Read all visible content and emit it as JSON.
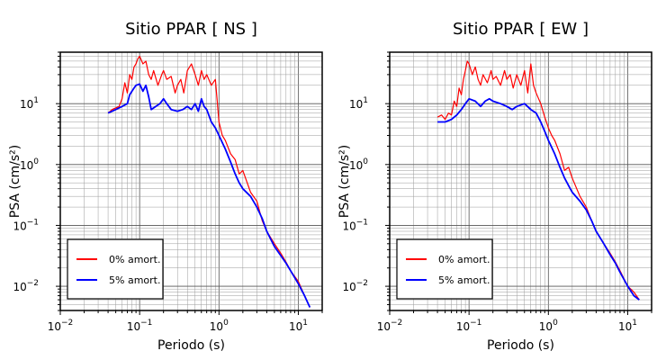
{
  "chart_data": [
    {
      "type": "line",
      "title": "Sitio PPAR [ NS ]",
      "xlabel": "Periodo (s)",
      "ylabel": "PSA (cm/s²)",
      "xscale": "log",
      "yscale": "log",
      "xlim": [
        0.01,
        20
      ],
      "ylim": [
        0.004,
        70
      ],
      "x_ticks": [
        {
          "base": "10",
          "exp": "−2"
        },
        {
          "base": "10",
          "exp": "−1"
        },
        {
          "base": "10",
          "exp": "0"
        },
        {
          "base": "10",
          "exp": "1"
        }
      ],
      "y_ticks": [
        {
          "base": "10",
          "exp": "−2"
        },
        {
          "base": "10",
          "exp": "−1"
        },
        {
          "base": "10",
          "exp": "0"
        },
        {
          "base": "10",
          "exp": "1"
        }
      ],
      "grid": true,
      "legend_position": "bottom-left",
      "series": [
        {
          "name": "0% amort.",
          "color": "#ff0000",
          "points": [
            [
              0.04,
              7
            ],
            [
              0.045,
              8
            ],
            [
              0.05,
              8.5
            ],
            [
              0.055,
              9
            ],
            [
              0.06,
              12
            ],
            [
              0.065,
              22
            ],
            [
              0.07,
              15
            ],
            [
              0.075,
              30
            ],
            [
              0.08,
              25
            ],
            [
              0.085,
              40
            ],
            [
              0.09,
              45
            ],
            [
              0.095,
              55
            ],
            [
              0.1,
              60
            ],
            [
              0.11,
              45
            ],
            [
              0.12,
              50
            ],
            [
              0.13,
              30
            ],
            [
              0.14,
              25
            ],
            [
              0.15,
              35
            ],
            [
              0.17,
              20
            ],
            [
              0.19,
              30
            ],
            [
              0.2,
              35
            ],
            [
              0.22,
              25
            ],
            [
              0.25,
              28
            ],
            [
              0.28,
              15
            ],
            [
              0.3,
              20
            ],
            [
              0.33,
              25
            ],
            [
              0.36,
              15
            ],
            [
              0.4,
              35
            ],
            [
              0.45,
              45
            ],
            [
              0.5,
              30
            ],
            [
              0.55,
              20
            ],
            [
              0.6,
              35
            ],
            [
              0.65,
              25
            ],
            [
              0.7,
              30
            ],
            [
              0.8,
              20
            ],
            [
              0.9,
              25
            ],
            [
              1.0,
              5
            ],
            [
              1.1,
              3
            ],
            [
              1.2,
              2.5
            ],
            [
              1.4,
              1.5
            ],
            [
              1.6,
              1.2
            ],
            [
              1.8,
              0.7
            ],
            [
              2.0,
              0.8
            ],
            [
              2.5,
              0.35
            ],
            [
              3.0,
              0.25
            ],
            [
              3.5,
              0.12
            ],
            [
              4.0,
              0.08
            ],
            [
              5.0,
              0.05
            ],
            [
              6.0,
              0.035
            ],
            [
              7.0,
              0.025
            ],
            [
              8.0,
              0.018
            ],
            [
              10.0,
              0.012
            ],
            [
              12.0,
              0.007
            ],
            [
              14.0,
              0.0045
            ]
          ]
        },
        {
          "name": "5% amort.",
          "color": "#0000ff",
          "points": [
            [
              0.04,
              7
            ],
            [
              0.045,
              7.5
            ],
            [
              0.05,
              8
            ],
            [
              0.06,
              9
            ],
            [
              0.07,
              10
            ],
            [
              0.075,
              14
            ],
            [
              0.08,
              16
            ],
            [
              0.085,
              18
            ],
            [
              0.09,
              20
            ],
            [
              0.1,
              21
            ],
            [
              0.11,
              16
            ],
            [
              0.12,
              20
            ],
            [
              0.13,
              13
            ],
            [
              0.14,
              8
            ],
            [
              0.16,
              9
            ],
            [
              0.18,
              10
            ],
            [
              0.2,
              12
            ],
            [
              0.22,
              10
            ],
            [
              0.25,
              8
            ],
            [
              0.3,
              7.5
            ],
            [
              0.35,
              8
            ],
            [
              0.4,
              9
            ],
            [
              0.45,
              8
            ],
            [
              0.5,
              10
            ],
            [
              0.55,
              7.5
            ],
            [
              0.6,
              12
            ],
            [
              0.65,
              9
            ],
            [
              0.7,
              8
            ],
            [
              0.8,
              5
            ],
            [
              0.9,
              4
            ],
            [
              1.0,
              3
            ],
            [
              1.2,
              1.8
            ],
            [
              1.4,
              1.1
            ],
            [
              1.6,
              0.7
            ],
            [
              1.8,
              0.5
            ],
            [
              2.0,
              0.4
            ],
            [
              2.5,
              0.3
            ],
            [
              3.0,
              0.2
            ],
            [
              3.5,
              0.13
            ],
            [
              4.0,
              0.08
            ],
            [
              5.0,
              0.045
            ],
            [
              6.0,
              0.032
            ],
            [
              7.0,
              0.024
            ],
            [
              8.0,
              0.018
            ],
            [
              10.0,
              0.011
            ],
            [
              12.0,
              0.007
            ],
            [
              14.0,
              0.0045
            ]
          ]
        }
      ]
    },
    {
      "type": "line",
      "title": "Sitio PPAR [ EW ]",
      "xlabel": "Periodo (s)",
      "ylabel": "PSA (cm/s²)",
      "xscale": "log",
      "yscale": "log",
      "xlim": [
        0.01,
        20
      ],
      "ylim": [
        0.004,
        70
      ],
      "x_ticks": [
        {
          "base": "10",
          "exp": "−2"
        },
        {
          "base": "10",
          "exp": "−1"
        },
        {
          "base": "10",
          "exp": "0"
        },
        {
          "base": "10",
          "exp": "1"
        }
      ],
      "y_ticks": [
        {
          "base": "10",
          "exp": "−2"
        },
        {
          "base": "10",
          "exp": "−1"
        },
        {
          "base": "10",
          "exp": "0"
        },
        {
          "base": "10",
          "exp": "1"
        }
      ],
      "grid": true,
      "legend_position": "bottom-left",
      "series": [
        {
          "name": "0% amort.",
          "color": "#ff0000",
          "points": [
            [
              0.04,
              6
            ],
            [
              0.045,
              6.5
            ],
            [
              0.05,
              5.5
            ],
            [
              0.055,
              7
            ],
            [
              0.06,
              6.5
            ],
            [
              0.065,
              11
            ],
            [
              0.07,
              9
            ],
            [
              0.075,
              18
            ],
            [
              0.08,
              14
            ],
            [
              0.085,
              25
            ],
            [
              0.09,
              35
            ],
            [
              0.095,
              50
            ],
            [
              0.1,
              45
            ],
            [
              0.11,
              30
            ],
            [
              0.12,
              40
            ],
            [
              0.13,
              25
            ],
            [
              0.14,
              20
            ],
            [
              0.15,
              30
            ],
            [
              0.17,
              22
            ],
            [
              0.19,
              35
            ],
            [
              0.2,
              25
            ],
            [
              0.22,
              28
            ],
            [
              0.25,
              20
            ],
            [
              0.28,
              35
            ],
            [
              0.3,
              25
            ],
            [
              0.33,
              30
            ],
            [
              0.36,
              18
            ],
            [
              0.4,
              30
            ],
            [
              0.45,
              20
            ],
            [
              0.5,
              35
            ],
            [
              0.55,
              15
            ],
            [
              0.6,
              45
            ],
            [
              0.65,
              20
            ],
            [
              0.7,
              15
            ],
            [
              0.8,
              10
            ],
            [
              0.9,
              6
            ],
            [
              1.0,
              4
            ],
            [
              1.1,
              3
            ],
            [
              1.2,
              2.5
            ],
            [
              1.4,
              1.5
            ],
            [
              1.6,
              0.8
            ],
            [
              1.8,
              0.9
            ],
            [
              2.0,
              0.6
            ],
            [
              2.5,
              0.3
            ],
            [
              3.0,
              0.2
            ],
            [
              3.5,
              0.12
            ],
            [
              4.0,
              0.08
            ],
            [
              5.0,
              0.05
            ],
            [
              6.0,
              0.035
            ],
            [
              7.0,
              0.025
            ],
            [
              8.0,
              0.018
            ],
            [
              10.0,
              0.01
            ],
            [
              12.0,
              0.008
            ],
            [
              14.0,
              0.006
            ]
          ]
        },
        {
          "name": "5% amort.",
          "color": "#0000ff",
          "points": [
            [
              0.04,
              5
            ],
            [
              0.05,
              5
            ],
            [
              0.06,
              5.5
            ],
            [
              0.07,
              6.5
            ],
            [
              0.08,
              8
            ],
            [
              0.09,
              10
            ],
            [
              0.1,
              12
            ],
            [
              0.12,
              11
            ],
            [
              0.14,
              9
            ],
            [
              0.16,
              11
            ],
            [
              0.18,
              12
            ],
            [
              0.2,
              11
            ],
            [
              0.25,
              10
            ],
            [
              0.3,
              9
            ],
            [
              0.35,
              8
            ],
            [
              0.4,
              9
            ],
            [
              0.5,
              10
            ],
            [
              0.6,
              8
            ],
            [
              0.7,
              7
            ],
            [
              0.8,
              5
            ],
            [
              0.9,
              3.5
            ],
            [
              1.0,
              2.5
            ],
            [
              1.2,
              1.5
            ],
            [
              1.4,
              0.9
            ],
            [
              1.6,
              0.6
            ],
            [
              1.8,
              0.45
            ],
            [
              2.0,
              0.35
            ],
            [
              2.5,
              0.25
            ],
            [
              3.0,
              0.18
            ],
            [
              3.5,
              0.12
            ],
            [
              4.0,
              0.08
            ],
            [
              5.0,
              0.05
            ],
            [
              6.0,
              0.033
            ],
            [
              7.0,
              0.024
            ],
            [
              8.0,
              0.017
            ],
            [
              10.0,
              0.01
            ],
            [
              12.0,
              0.007
            ],
            [
              14.0,
              0.006
            ]
          ]
        }
      ]
    }
  ]
}
